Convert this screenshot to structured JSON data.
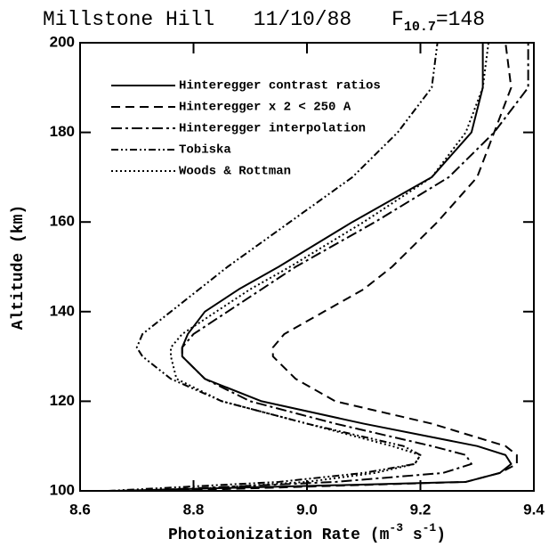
{
  "chart_data": {
    "type": "line",
    "title": "Millstone Hill",
    "subtitle": "11/10/88",
    "annotation": [
      "F",
      "10.7",
      "=148"
    ],
    "x_label": [
      "Photoionization Rate (m",
      "-3",
      " s",
      "-1",
      ")"
    ],
    "y_label": "Altitude (km)",
    "y": [
      100,
      102,
      104,
      106,
      108,
      110,
      115,
      120,
      125,
      130,
      132,
      135,
      140,
      145,
      150,
      160,
      170,
      180,
      190,
      200
    ],
    "series": [
      {
        "name": "Hinteregger contrast ratios",
        "color": "#000000",
        "dash": "none",
        "values": [
          8.66,
          9.28,
          9.34,
          9.36,
          9.35,
          9.3,
          9.1,
          8.92,
          8.82,
          8.78,
          8.78,
          8.79,
          8.82,
          8.88,
          8.95,
          9.08,
          9.22,
          9.29,
          9.31,
          9.31
        ]
      },
      {
        "name": "Hinteregger x 2 < 250 A",
        "color": "#000000",
        "dash": "10,6",
        "values": [
          8.75,
          9.28,
          9.34,
          9.37,
          9.37,
          9.35,
          9.22,
          9.05,
          8.98,
          8.94,
          8.94,
          8.96,
          9.03,
          9.1,
          9.15,
          9.23,
          9.3,
          9.33,
          9.36,
          9.35
        ]
      },
      {
        "name": "Hinteregger interpolation",
        "color": "#000000",
        "dash": "12,4,3,4",
        "values": [
          8.7,
          9.05,
          9.24,
          9.29,
          9.28,
          9.22,
          9.05,
          8.9,
          8.82,
          8.78,
          8.78,
          8.8,
          8.86,
          8.92,
          8.98,
          9.12,
          9.25,
          9.33,
          9.39,
          9.39
        ]
      },
      {
        "name": "Tobiska",
        "color": "#000000",
        "dash": "8,3,2,3,2,3",
        "values": [
          8.65,
          8.95,
          9.1,
          9.19,
          9.2,
          9.17,
          9.0,
          8.85,
          8.76,
          8.71,
          8.7,
          8.71,
          8.76,
          8.81,
          8.86,
          8.97,
          9.08,
          9.16,
          9.22,
          9.23
        ]
      },
      {
        "name": "Woods & Rottman",
        "color": "#000000",
        "dash": "2,3",
        "values": [
          8.75,
          9.0,
          9.12,
          9.19,
          9.2,
          9.15,
          9.0,
          8.85,
          8.77,
          8.76,
          8.76,
          8.78,
          8.84,
          8.9,
          8.97,
          9.1,
          9.22,
          9.28,
          9.31,
          9.32
        ]
      }
    ],
    "xlim": [
      8.6,
      9.4
    ],
    "xticks": [
      8.6,
      8.8,
      {
        "value": 9,
        "label": "9.0"
      },
      9.2,
      9.4
    ],
    "ylim": [
      100,
      200
    ],
    "yticks": [
      100,
      120,
      140,
      160,
      180,
      200
    ],
    "legend": "upper left"
  }
}
